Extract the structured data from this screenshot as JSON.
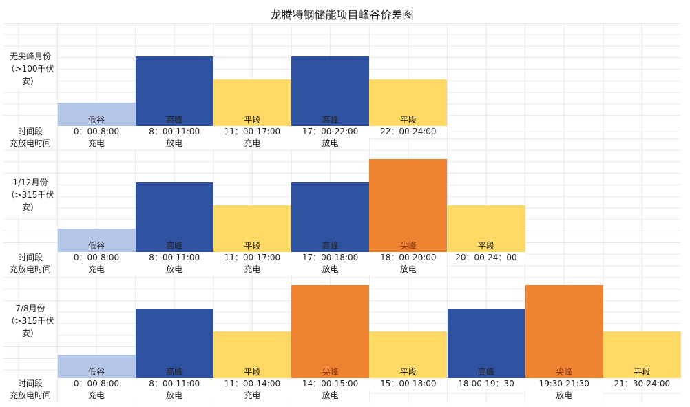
{
  "title": "龙腾特钢储能项目峰谷价差图",
  "row_labels": {
    "time": "时间段",
    "mode": "充放电时间"
  },
  "colors": {
    "低谷": "#b4c6e7",
    "高峰": "#2f52a0",
    "平段": "#ffd966",
    "尖峰": "#ed8331"
  },
  "chart_data": {
    "type": "bar",
    "level_scale": {
      "低谷": 1,
      "平段": 2,
      "高峰": 3,
      "尖峰": 4
    },
    "sections": [
      {
        "label": "无尖峰月份（>100千伏安）",
        "periods": [
          {
            "type": "低谷",
            "time": "0：00-8:00",
            "mode": "充电"
          },
          {
            "type": "高峰",
            "time": "8：00-11:00",
            "mode": "放电"
          },
          {
            "type": "平段",
            "time": "11：00-17:00",
            "mode": "充电"
          },
          {
            "type": "高峰",
            "time": "17：00-22:00",
            "mode": "放电"
          },
          {
            "type": "平段",
            "time": "22：00-24:00",
            "mode": ""
          }
        ]
      },
      {
        "label": "1/12月份（>315千伏安）",
        "periods": [
          {
            "type": "低谷",
            "time": "0：00-8:00",
            "mode": "充电"
          },
          {
            "type": "高峰",
            "time": "8：00-11:00",
            "mode": "放电"
          },
          {
            "type": "平段",
            "time": "11：00-17:00",
            "mode": "充电"
          },
          {
            "type": "高峰",
            "time": "17：00-18:00",
            "mode": "放电"
          },
          {
            "type": "尖峰",
            "time": "18：00-20:00",
            "mode": "放电"
          },
          {
            "type": "平段",
            "time": "20：00-24：00",
            "mode": ""
          }
        ]
      },
      {
        "label": "7/8月份（>315千伏安）",
        "periods": [
          {
            "type": "低谷",
            "time": "0：00-8:00",
            "mode": "充电"
          },
          {
            "type": "高峰",
            "time": "8：00-11:00",
            "mode": "放电"
          },
          {
            "type": "平段",
            "time": "11：00-14:00",
            "mode": "充电"
          },
          {
            "type": "尖峰",
            "time": "14：00-15:00",
            "mode": "放电"
          },
          {
            "type": "平段",
            "time": "15：00-18:00",
            "mode": ""
          },
          {
            "type": "高峰",
            "time": "18:00-19：30",
            "mode": ""
          },
          {
            "type": "尖峰",
            "time": "19:30-21:30",
            "mode": "放电"
          },
          {
            "type": "平段",
            "time": "21：30-24:00",
            "mode": ""
          }
        ]
      }
    ]
  }
}
